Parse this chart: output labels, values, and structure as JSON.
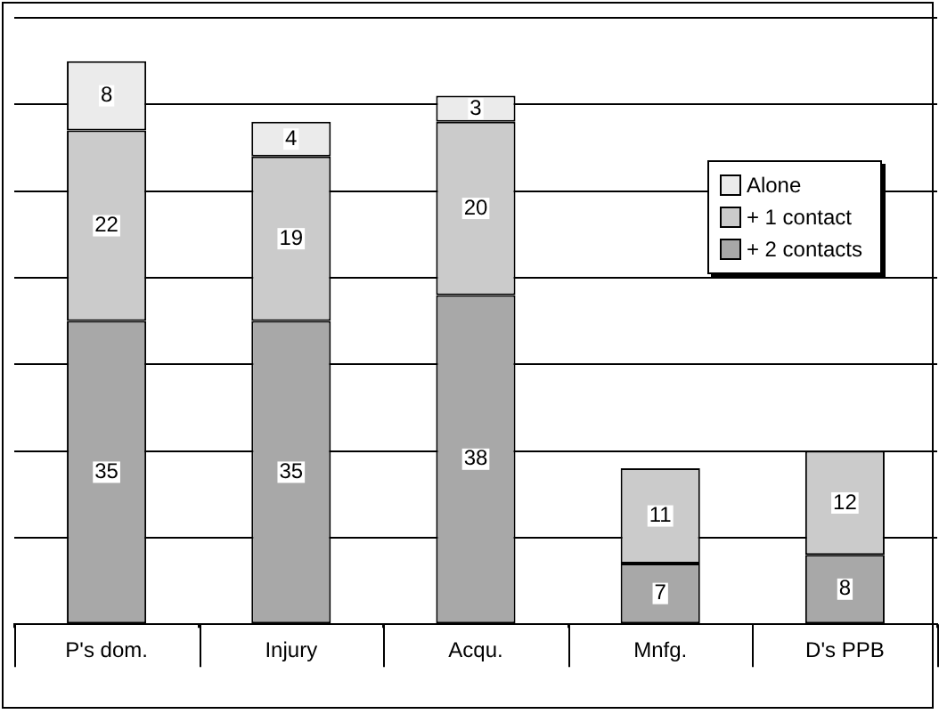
{
  "chart_data": {
    "type": "bar",
    "stacked": true,
    "data_labels": true,
    "grid": "y",
    "legend": "top right",
    "tick_labels": "x",
    "categories": [
      "P's dom.",
      "Injury",
      "Acqu.",
      "Mnfg.",
      "D's PPB"
    ],
    "ylim": [
      0,
      70
    ],
    "yticks": [
      {
        "value": 0,
        "label": null
      },
      {
        "value": 10,
        "label": null
      },
      {
        "value": 20,
        "label": null
      },
      {
        "value": 30,
        "label": null
      },
      {
        "value": 40,
        "label": null
      },
      {
        "value": 50,
        "label": null
      },
      {
        "value": 60,
        "label": null
      },
      {
        "value": 70,
        "label": null
      }
    ],
    "series": [
      {
        "name": "+ 2 contacts",
        "color": "#a8a8a8",
        "values": [
          35,
          35,
          38,
          7,
          8
        ]
      },
      {
        "name": "+ 1 contact",
        "color": "#cbcbcb",
        "values": [
          22,
          19,
          20,
          11,
          12
        ]
      },
      {
        "name": "Alone",
        "color": "#ebebeb",
        "values": [
          8,
          4,
          3,
          null,
          null
        ]
      }
    ]
  }
}
